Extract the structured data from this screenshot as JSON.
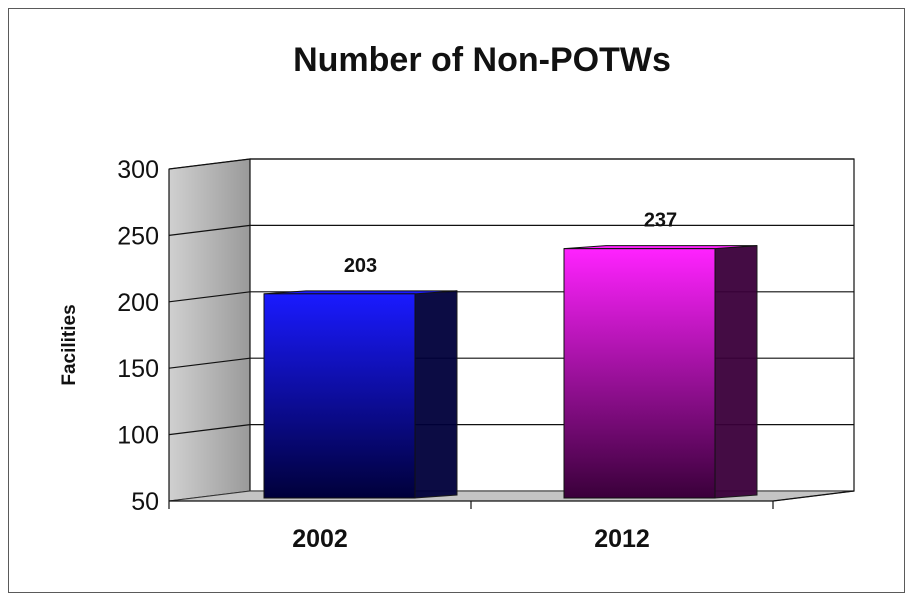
{
  "chart_data": {
    "type": "bar",
    "title": "Number of Non-POTWs",
    "xlabel": "",
    "ylabel": "Facilities",
    "categories": [
      "2002",
      "2012"
    ],
    "values": [
      203,
      237
    ],
    "data_labels": [
      "203",
      "237"
    ],
    "ylim": [
      50,
      300
    ],
    "yticks": [
      "50",
      "100",
      "150",
      "200",
      "250",
      "300"
    ],
    "grid": true,
    "legend": "none",
    "colors": {
      "bar_2002": "#1a1aff",
      "bar_2002_dark": "#00003a",
      "bar_2012": "#ff22ff",
      "bar_2012_dark": "#3a003a",
      "wall": "#b0b0b0",
      "floor": "#c4c4c4"
    }
  }
}
